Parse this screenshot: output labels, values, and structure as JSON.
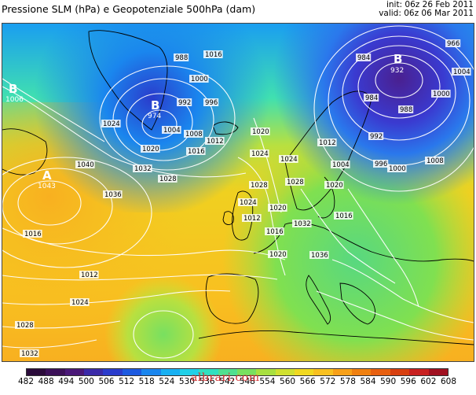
{
  "title": "Pressione SLM (hPa) e Geopotenziale 500hPa (dam)",
  "init": "init: 06z 26 Feb 2011",
  "valid": "valid: 06z 06 Mar 2011",
  "watermark": "albrari.com",
  "colorbar": {
    "ticks": [
      "482",
      "488",
      "494",
      "500",
      "506",
      "512",
      "518",
      "524",
      "530",
      "536",
      "542",
      "548",
      "554",
      "560",
      "566",
      "572",
      "578",
      "584",
      "590",
      "596",
      "602",
      "608"
    ],
    "colors": [
      "#2a0a3a",
      "#3b1058",
      "#4a1878",
      "#3a2aa8",
      "#2a3ccc",
      "#1c5ae0",
      "#1a86ee",
      "#18b0f2",
      "#20d0e8",
      "#30e0c0",
      "#50e090",
      "#78e060",
      "#a8e040",
      "#d0e030",
      "#f0d820",
      "#f8c020",
      "#f8a018",
      "#f08010",
      "#e86010",
      "#d84010",
      "#c82020",
      "#a01020"
    ]
  },
  "pressure_centers": [
    {
      "letter": "B",
      "value": "1006"
    },
    {
      "letter": "B",
      "value": "974"
    },
    {
      "letter": "B",
      "value": "932"
    },
    {
      "letter": "A",
      "value": "1043"
    }
  ],
  "isobar_labels": [
    "988",
    "1016",
    "1000",
    "992",
    "996",
    "1004",
    "1008",
    "1012",
    "1024",
    "1020",
    "1016",
    "1040",
    "1032",
    "1028",
    "1036",
    "1020",
    "1024",
    "1028",
    "1024",
    "1020",
    "1016",
    "1012",
    "984",
    "966",
    "1004",
    "1000",
    "988",
    "984",
    "992",
    "996",
    "1000",
    "1008",
    "1012",
    "1004",
    "1016",
    "1020",
    "1024",
    "1028",
    "1032",
    "1036",
    "1020",
    "1016",
    "1012",
    "1024",
    "1028",
    "1032"
  ]
}
